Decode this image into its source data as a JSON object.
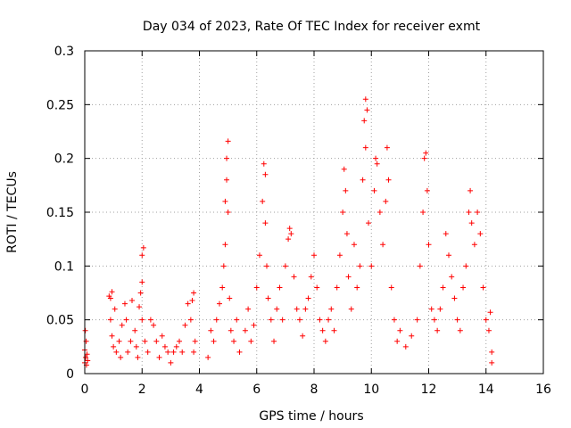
{
  "chart_data": {
    "type": "scatter",
    "title": "Day 034 of 2023, Rate Of TEC Index for receiver exmt",
    "xlabel": "GPS time / hours",
    "ylabel": "ROTI / TECUs",
    "xlim": [
      0,
      16
    ],
    "ylim": [
      0,
      0.3
    ],
    "xticks": [
      0,
      2,
      4,
      6,
      8,
      10,
      12,
      14,
      16
    ],
    "yticks": [
      0,
      0.05,
      0.1,
      0.15,
      0.2,
      0.25,
      0.3
    ],
    "xtick_labels": [
      "0",
      "2",
      "4",
      "6",
      "8",
      "10",
      "12",
      "14",
      "16"
    ],
    "ytick_labels": [
      "0",
      "0.05",
      "0.1",
      "0.15",
      "0.2",
      "0.25",
      "0.3"
    ],
    "grid": true,
    "marker": "+",
    "color": "#ff0000",
    "series": [
      {
        "name": "ROTI",
        "points": [
          [
            0.0,
            0.01
          ],
          [
            0.0,
            0.022
          ],
          [
            0.02,
            0.04
          ],
          [
            0.03,
            0.015
          ],
          [
            0.05,
            0.03
          ],
          [
            0.06,
            0.008
          ],
          [
            0.08,
            0.018
          ],
          [
            0.1,
            0.012
          ],
          [
            0.85,
            0.072
          ],
          [
            0.9,
            0.07
          ],
          [
            0.95,
            0.076
          ],
          [
            0.9,
            0.05
          ],
          [
            0.95,
            0.035
          ],
          [
            1.0,
            0.025
          ],
          [
            1.05,
            0.06
          ],
          [
            1.1,
            0.02
          ],
          [
            1.2,
            0.03
          ],
          [
            1.25,
            0.015
          ],
          [
            1.3,
            0.045
          ],
          [
            1.4,
            0.065
          ],
          [
            1.45,
            0.05
          ],
          [
            1.5,
            0.02
          ],
          [
            1.6,
            0.03
          ],
          [
            1.65,
            0.068
          ],
          [
            1.75,
            0.04
          ],
          [
            1.8,
            0.025
          ],
          [
            1.85,
            0.015
          ],
          [
            1.9,
            0.062
          ],
          [
            1.95,
            0.075
          ],
          [
            2.0,
            0.11
          ],
          [
            2.05,
            0.117
          ],
          [
            2.0,
            0.085
          ],
          [
            2.0,
            0.05
          ],
          [
            2.1,
            0.03
          ],
          [
            2.2,
            0.02
          ],
          [
            2.3,
            0.05
          ],
          [
            2.4,
            0.045
          ],
          [
            2.5,
            0.03
          ],
          [
            2.6,
            0.015
          ],
          [
            2.7,
            0.035
          ],
          [
            2.8,
            0.025
          ],
          [
            2.9,
            0.02
          ],
          [
            3.0,
            0.01
          ],
          [
            3.1,
            0.02
          ],
          [
            3.2,
            0.025
          ],
          [
            3.3,
            0.03
          ],
          [
            3.4,
            0.02
          ],
          [
            3.5,
            0.045
          ],
          [
            3.6,
            0.065
          ],
          [
            3.7,
            0.05
          ],
          [
            3.75,
            0.068
          ],
          [
            3.8,
            0.075
          ],
          [
            3.8,
            0.02
          ],
          [
            3.85,
            0.03
          ],
          [
            4.3,
            0.015
          ],
          [
            4.4,
            0.04
          ],
          [
            4.5,
            0.03
          ],
          [
            4.6,
            0.05
          ],
          [
            4.7,
            0.065
          ],
          [
            4.8,
            0.08
          ],
          [
            4.85,
            0.1
          ],
          [
            4.9,
            0.12
          ],
          [
            4.9,
            0.16
          ],
          [
            4.95,
            0.2
          ],
          [
            5.0,
            0.216
          ],
          [
            4.95,
            0.18
          ],
          [
            5.0,
            0.15
          ],
          [
            5.05,
            0.07
          ],
          [
            5.1,
            0.04
          ],
          [
            5.2,
            0.03
          ],
          [
            5.3,
            0.05
          ],
          [
            5.4,
            0.02
          ],
          [
            5.6,
            0.04
          ],
          [
            5.7,
            0.06
          ],
          [
            5.8,
            0.03
          ],
          [
            5.9,
            0.045
          ],
          [
            6.0,
            0.08
          ],
          [
            6.1,
            0.11
          ],
          [
            6.2,
            0.16
          ],
          [
            6.25,
            0.195
          ],
          [
            6.3,
            0.185
          ],
          [
            6.3,
            0.14
          ],
          [
            6.35,
            0.1
          ],
          [
            6.4,
            0.07
          ],
          [
            6.5,
            0.05
          ],
          [
            6.6,
            0.03
          ],
          [
            6.7,
            0.06
          ],
          [
            6.8,
            0.08
          ],
          [
            6.9,
            0.05
          ],
          [
            7.0,
            0.1
          ],
          [
            7.1,
            0.125
          ],
          [
            7.15,
            0.135
          ],
          [
            7.2,
            0.13
          ],
          [
            7.3,
            0.09
          ],
          [
            7.4,
            0.06
          ],
          [
            7.5,
            0.05
          ],
          [
            7.6,
            0.035
          ],
          [
            7.7,
            0.06
          ],
          [
            7.8,
            0.07
          ],
          [
            7.9,
            0.09
          ],
          [
            8.0,
            0.11
          ],
          [
            8.1,
            0.08
          ],
          [
            8.2,
            0.05
          ],
          [
            8.3,
            0.04
          ],
          [
            8.4,
            0.03
          ],
          [
            8.5,
            0.05
          ],
          [
            8.6,
            0.06
          ],
          [
            8.7,
            0.04
          ],
          [
            8.8,
            0.08
          ],
          [
            8.9,
            0.11
          ],
          [
            9.0,
            0.15
          ],
          [
            9.05,
            0.19
          ],
          [
            9.1,
            0.17
          ],
          [
            9.15,
            0.13
          ],
          [
            9.2,
            0.09
          ],
          [
            9.3,
            0.06
          ],
          [
            9.4,
            0.12
          ],
          [
            9.5,
            0.08
          ],
          [
            9.6,
            0.1
          ],
          [
            9.7,
            0.18
          ],
          [
            9.75,
            0.235
          ],
          [
            9.8,
            0.255
          ],
          [
            9.85,
            0.245
          ],
          [
            9.8,
            0.21
          ],
          [
            9.9,
            0.14
          ],
          [
            10.0,
            0.1
          ],
          [
            10.1,
            0.17
          ],
          [
            10.15,
            0.2
          ],
          [
            10.2,
            0.195
          ],
          [
            10.3,
            0.15
          ],
          [
            10.4,
            0.12
          ],
          [
            10.5,
            0.16
          ],
          [
            10.55,
            0.21
          ],
          [
            10.6,
            0.18
          ],
          [
            10.7,
            0.08
          ],
          [
            10.8,
            0.05
          ],
          [
            10.9,
            0.03
          ],
          [
            11.0,
            0.04
          ],
          [
            11.2,
            0.025
          ],
          [
            11.4,
            0.035
          ],
          [
            11.6,
            0.05
          ],
          [
            11.7,
            0.1
          ],
          [
            11.8,
            0.15
          ],
          [
            11.85,
            0.2
          ],
          [
            11.9,
            0.205
          ],
          [
            11.95,
            0.17
          ],
          [
            12.0,
            0.12
          ],
          [
            12.1,
            0.06
          ],
          [
            12.2,
            0.05
          ],
          [
            12.3,
            0.04
          ],
          [
            12.4,
            0.06
          ],
          [
            12.5,
            0.08
          ],
          [
            12.6,
            0.13
          ],
          [
            12.7,
            0.11
          ],
          [
            12.8,
            0.09
          ],
          [
            12.9,
            0.07
          ],
          [
            13.0,
            0.05
          ],
          [
            13.1,
            0.04
          ],
          [
            13.2,
            0.08
          ],
          [
            13.3,
            0.1
          ],
          [
            13.4,
            0.15
          ],
          [
            13.45,
            0.17
          ],
          [
            13.5,
            0.14
          ],
          [
            13.6,
            0.12
          ],
          [
            13.7,
            0.15
          ],
          [
            13.8,
            0.13
          ],
          [
            13.9,
            0.08
          ],
          [
            14.0,
            0.05
          ],
          [
            14.1,
            0.04
          ],
          [
            14.15,
            0.057
          ],
          [
            14.2,
            0.02
          ],
          [
            14.2,
            0.01
          ]
        ]
      }
    ]
  }
}
